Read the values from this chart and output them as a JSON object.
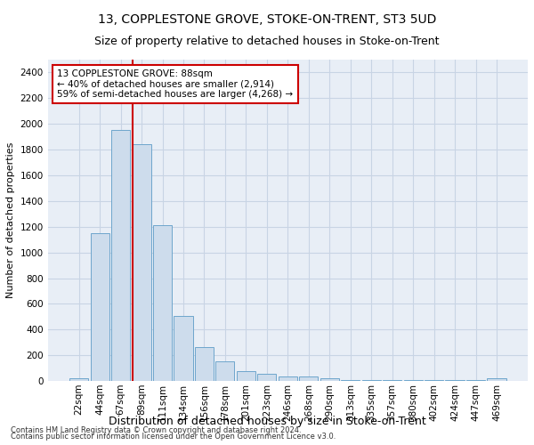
{
  "title": "13, COPPLESTONE GROVE, STOKE-ON-TRENT, ST3 5UD",
  "subtitle": "Size of property relative to detached houses in Stoke-on-Trent",
  "xlabel": "Distribution of detached houses by size in Stoke-on-Trent",
  "ylabel": "Number of detached properties",
  "footer_line1": "Contains HM Land Registry data © Crown copyright and database right 2024.",
  "footer_line2": "Contains public sector information licensed under the Open Government Licence v3.0.",
  "annotation_title": "13 COPPLESTONE GROVE: 88sqm",
  "annotation_line2": "← 40% of detached houses are smaller (2,914)",
  "annotation_line3": "59% of semi-detached houses are larger (4,268) →",
  "bar_labels": [
    "22sqm",
    "44sqm",
    "67sqm",
    "89sqm",
    "111sqm",
    "134sqm",
    "156sqm",
    "178sqm",
    "201sqm",
    "223sqm",
    "246sqm",
    "268sqm",
    "290sqm",
    "313sqm",
    "335sqm",
    "357sqm",
    "380sqm",
    "402sqm",
    "424sqm",
    "447sqm",
    "469sqm"
  ],
  "bar_values": [
    25,
    1150,
    1950,
    1840,
    1210,
    505,
    265,
    155,
    80,
    55,
    35,
    35,
    20,
    10,
    8,
    5,
    5,
    5,
    5,
    5,
    20
  ],
  "bar_color": "#cddcec",
  "bar_edge_color": "#6ea6cc",
  "vline_x_index": 3,
  "vline_color": "#cc0000",
  "annotation_box_color": "#cc0000",
  "ylim": [
    0,
    2500
  ],
  "yticks": [
    0,
    200,
    400,
    600,
    800,
    1000,
    1200,
    1400,
    1600,
    1800,
    2000,
    2200,
    2400
  ],
  "grid_color": "#c8d4e4",
  "bg_color": "#e8eef6",
  "title_fontsize": 10,
  "subtitle_fontsize": 9,
  "ylabel_fontsize": 8,
  "xlabel_fontsize": 9,
  "tick_fontsize": 7.5,
  "annotation_fontsize": 7.5,
  "footer_fontsize": 6
}
